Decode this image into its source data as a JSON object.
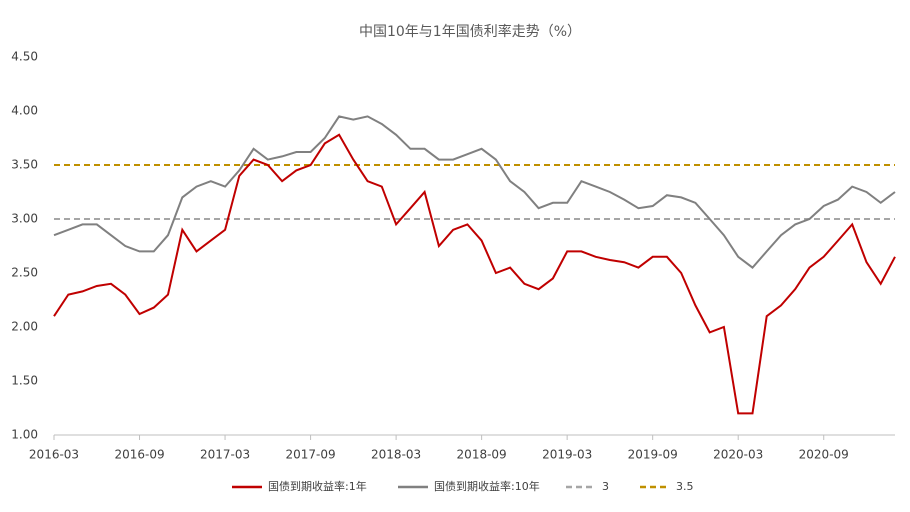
{
  "chart_data": {
    "type": "line",
    "title": "中国10年与1年国债利率走势（%）",
    "x": [
      "2016-03",
      "2016-04",
      "2016-05",
      "2016-06",
      "2016-07",
      "2016-08",
      "2016-09",
      "2016-10",
      "2016-11",
      "2016-12",
      "2017-01",
      "2017-02",
      "2017-03",
      "2017-04",
      "2017-05",
      "2017-06",
      "2017-07",
      "2017-08",
      "2017-09",
      "2017-10",
      "2017-11",
      "2017-12",
      "2018-01",
      "2018-02",
      "2018-03",
      "2018-04",
      "2018-05",
      "2018-06",
      "2018-07",
      "2018-08",
      "2018-09",
      "2018-10",
      "2018-11",
      "2018-12",
      "2019-01",
      "2019-02",
      "2019-03",
      "2019-04",
      "2019-05",
      "2019-06",
      "2019-07",
      "2019-08",
      "2019-09",
      "2019-10",
      "2019-11",
      "2019-12",
      "2020-01",
      "2020-02",
      "2020-03",
      "2020-04",
      "2020-05",
      "2020-06",
      "2020-07",
      "2020-08",
      "2020-09",
      "2020-10",
      "2020-11",
      "2020-12",
      "2021-01",
      "2021-02"
    ],
    "series": [
      {
        "name": "国债到期收益率:1年",
        "color": "#c00000",
        "values": [
          2.1,
          2.3,
          2.33,
          2.38,
          2.4,
          2.3,
          2.12,
          2.18,
          2.3,
          2.9,
          2.7,
          2.8,
          2.9,
          3.4,
          3.55,
          3.5,
          3.35,
          3.45,
          3.5,
          3.7,
          3.78,
          3.55,
          3.35,
          3.3,
          2.95,
          3.1,
          3.25,
          2.75,
          2.9,
          2.95,
          2.8,
          2.5,
          2.55,
          2.4,
          2.35,
          2.45,
          2.7,
          2.7,
          2.65,
          2.62,
          2.6,
          2.55,
          2.65,
          2.65,
          2.5,
          2.2,
          1.95,
          2.0,
          1.2,
          1.2,
          2.1,
          2.2,
          2.35,
          2.55,
          2.65,
          2.8,
          2.95,
          2.6,
          2.4,
          2.65
        ]
      },
      {
        "name": "国债到期收益率:10年",
        "color": "#808080",
        "values": [
          2.85,
          2.9,
          2.95,
          2.95,
          2.85,
          2.75,
          2.7,
          2.7,
          2.85,
          3.2,
          3.3,
          3.35,
          3.3,
          3.45,
          3.65,
          3.55,
          3.58,
          3.62,
          3.62,
          3.75,
          3.95,
          3.92,
          3.95,
          3.88,
          3.78,
          3.65,
          3.65,
          3.55,
          3.55,
          3.6,
          3.65,
          3.55,
          3.35,
          3.25,
          3.1,
          3.15,
          3.15,
          3.35,
          3.3,
          3.25,
          3.18,
          3.1,
          3.12,
          3.22,
          3.2,
          3.15,
          3.0,
          2.85,
          2.65,
          2.55,
          2.7,
          2.85,
          2.95,
          3.0,
          3.12,
          3.18,
          3.3,
          3.25,
          3.15,
          3.25
        ]
      }
    ],
    "hlines": [
      {
        "name": "3",
        "value": 3,
        "color": "#a6a6a6"
      },
      {
        "name": "3.5",
        "value": 3.5,
        "color": "#bf9000"
      }
    ],
    "xlim": [
      "2016-03",
      "2021-02"
    ],
    "xticks": [
      "2016-03",
      "2016-09",
      "2017-03",
      "2017-09",
      "2018-03",
      "2018-09",
      "2019-03",
      "2019-09",
      "2020-03",
      "2020-09"
    ],
    "ylim": [
      1,
      4.5
    ],
    "yticks": [
      {
        "value": 1,
        "label": "1.00"
      },
      {
        "value": 1.5,
        "label": "1.50"
      },
      {
        "value": 2,
        "label": "2.00"
      },
      {
        "value": 2.5,
        "label": "2.50"
      },
      {
        "value": 3,
        "label": "3.00"
      },
      {
        "value": 3.5,
        "label": "3.50"
      },
      {
        "value": 4,
        "label": "4.00"
      },
      {
        "value": 4.5,
        "label": "4.50"
      }
    ],
    "legend": "bottom"
  }
}
